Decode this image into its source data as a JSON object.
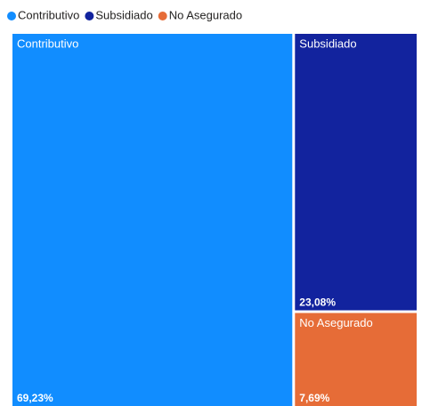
{
  "chart_data": {
    "type": "treemap",
    "categories": [
      "Contributivo",
      "Subsidiado",
      "No Asegurado"
    ],
    "values": [
      69.23,
      23.08,
      7.69
    ],
    "value_labels": [
      "69,23%",
      "23,08%",
      "7,69%"
    ],
    "colors": [
      "#118DFF",
      "#12239E",
      "#E66C37"
    ]
  }
}
